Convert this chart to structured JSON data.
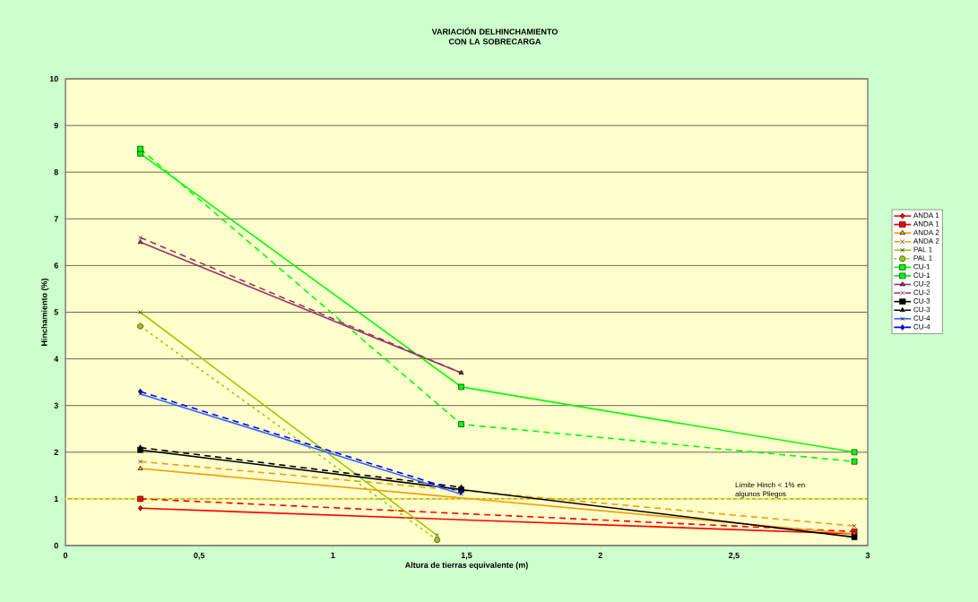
{
  "chart_data": {
    "type": "line",
    "title": "VARIACIÓN DELHINCHAMIENTO CON LA SOBRECARGA",
    "xlabel": "Altura de tierras equivalente (m)",
    "ylabel": "Hinchamiento (%)",
    "xlim": [
      0,
      3
    ],
    "ylim": [
      0,
      10
    ],
    "xticks": [
      0,
      {
        "value": 0.5,
        "label": "0,5"
      },
      1,
      {
        "value": 1.5,
        "label": "1,5"
      },
      2,
      {
        "value": 2.5,
        "label": "2,5"
      },
      3
    ],
    "yticks": [
      0,
      1,
      2,
      3,
      4,
      5,
      6,
      7,
      8,
      9,
      10
    ],
    "grid": "y",
    "legend": "right",
    "ref_lines": [
      {
        "axis": "y",
        "value": 1,
        "label": "Límite Hinch < 1% en algunos Pliegos",
        "color": "#ffff00",
        "line_style": "dotted"
      }
    ],
    "series": [
      {
        "name": "ANDA 1",
        "color": "#ff0000",
        "marker": "diamond",
        "line_style": "solid",
        "x": [
          0.28,
          2.95
        ],
        "values": [
          0.8,
          0.25
        ]
      },
      {
        "name": "ANDA 1",
        "color": "#ff0000",
        "marker": "square",
        "line_style": "dashed",
        "x": [
          0.28,
          2.95
        ],
        "values": [
          1.0,
          0.3
        ]
      },
      {
        "name": "ANDA 2",
        "color": "#ff9900",
        "marker": "triangle",
        "line_style": "solid",
        "x": [
          0.28,
          2.95
        ],
        "values": [
          1.65,
          0.25
        ]
      },
      {
        "name": "ANDA 2",
        "color": "#ff9900",
        "marker": "cross",
        "line_style": "dashed",
        "x": [
          0.28,
          2.95
        ],
        "values": [
          1.8,
          0.42
        ]
      },
      {
        "name": "PAL 1",
        "color": "#99cc00",
        "marker": "cross",
        "line_style": "solid",
        "x": [
          0.28,
          1.39
        ],
        "values": [
          5.0,
          0.22
        ]
      },
      {
        "name": "PAL 1",
        "color": "#99cc00",
        "marker": "circle",
        "line_style": "dotted",
        "x": [
          0.28,
          1.39
        ],
        "values": [
          4.7,
          0.12
        ]
      },
      {
        "name": "CU-1",
        "color": "#00ff00",
        "marker": "square",
        "line_style": "solid",
        "x": [
          0.28,
          1.48,
          2.95
        ],
        "values": [
          8.4,
          3.4,
          2.0
        ]
      },
      {
        "name": "CU-1",
        "color": "#00ff00",
        "marker": "square",
        "line_style": "dashed",
        "x": [
          0.28,
          1.48,
          2.95
        ],
        "values": [
          8.5,
          2.6,
          1.8
        ]
      },
      {
        "name": "CU-2",
        "color": "#993366",
        "marker": "triangle",
        "line_style": "solid",
        "x": [
          0.28,
          1.48
        ],
        "values": [
          6.5,
          3.7
        ]
      },
      {
        "name": "CU-2",
        "color": "#993366",
        "marker": "cross",
        "line_style": "dashed",
        "x": [
          0.28,
          1.48
        ],
        "values": [
          6.6,
          3.7
        ]
      },
      {
        "name": "CU-3",
        "color": "#000000",
        "marker": "square",
        "line_style": "solid",
        "x": [
          0.28,
          1.48,
          2.95
        ],
        "values": [
          2.05,
          1.2,
          0.18
        ]
      },
      {
        "name": "CU-3",
        "color": "#000000",
        "marker": "triangle",
        "line_style": "dashed",
        "x": [
          0.28,
          1.48
        ],
        "values": [
          2.1,
          1.25
        ]
      },
      {
        "name": "CU-4",
        "color": "#3366ff",
        "marker": "cross",
        "line_style": "solid",
        "x": [
          0.28,
          1.48
        ],
        "values": [
          3.25,
          1.1
        ]
      },
      {
        "name": "CU-4",
        "color": "#0000ff",
        "marker": "diamond",
        "line_style": "dashed",
        "x": [
          0.28,
          1.48
        ],
        "values": [
          3.3,
          1.15
        ]
      }
    ]
  }
}
